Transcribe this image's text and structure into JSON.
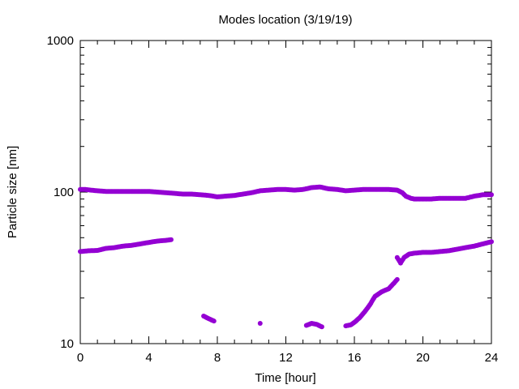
{
  "chart_data": {
    "type": "scatter",
    "title": "Modes location (3/19/19)",
    "xlabel": "Time [hour]",
    "ylabel": "Particle size [nm]",
    "xlim": [
      0,
      24
    ],
    "ylim": [
      10,
      1000
    ],
    "y_scale": "log",
    "x_ticks": [
      0,
      4,
      8,
      12,
      16,
      20,
      24
    ],
    "x_tick_labels": [
      "0",
      "4",
      "8",
      "12",
      "16",
      "20",
      "24"
    ],
    "y_ticks": [
      10,
      100,
      1000
    ],
    "y_tick_labels": [
      "10",
      "100",
      "1000"
    ],
    "grid": false,
    "legend": "none",
    "marker_color": "#9400d3",
    "series": [
      {
        "points": [
          [
            0.0,
            104
          ],
          [
            0.3,
            104
          ],
          [
            0.6,
            103
          ],
          [
            1.0,
            102
          ],
          [
            1.5,
            101
          ],
          [
            2.0,
            101
          ],
          [
            2.5,
            101
          ],
          [
            3.0,
            101
          ],
          [
            3.5,
            101
          ],
          [
            4.0,
            101
          ],
          [
            4.5,
            100
          ],
          [
            5.0,
            99
          ],
          [
            5.5,
            98
          ],
          [
            6.0,
            97
          ],
          [
            6.5,
            97
          ],
          [
            7.0,
            96
          ],
          [
            7.5,
            95
          ],
          [
            8.0,
            93
          ],
          [
            8.5,
            94
          ],
          [
            9.0,
            95
          ],
          [
            9.5,
            97
          ],
          [
            10.0,
            99
          ],
          [
            10.5,
            102
          ],
          [
            11.0,
            103
          ],
          [
            11.5,
            104
          ],
          [
            12.0,
            104
          ],
          [
            12.5,
            103
          ],
          [
            13.0,
            104
          ],
          [
            13.5,
            107
          ],
          [
            14.0,
            108
          ],
          [
            14.5,
            105
          ],
          [
            15.0,
            104
          ],
          [
            15.5,
            102
          ],
          [
            16.0,
            103
          ],
          [
            16.5,
            104
          ],
          [
            17.0,
            104
          ],
          [
            17.5,
            104
          ],
          [
            18.0,
            104
          ],
          [
            18.5,
            103
          ],
          [
            18.8,
            99
          ],
          [
            19.0,
            94
          ],
          [
            19.3,
            91
          ],
          [
            19.5,
            90
          ],
          [
            20.0,
            90
          ],
          [
            20.5,
            90
          ],
          [
            21.0,
            91
          ],
          [
            21.5,
            91
          ],
          [
            22.0,
            91
          ],
          [
            22.5,
            91
          ],
          [
            23.0,
            94
          ],
          [
            23.5,
            96
          ],
          [
            24.0,
            96
          ]
        ]
      },
      {
        "points": [
          [
            0.0,
            40.5
          ],
          [
            0.5,
            41
          ],
          [
            1.0,
            41.2
          ],
          [
            1.5,
            42.5
          ],
          [
            2.0,
            43
          ],
          [
            2.5,
            44
          ],
          [
            3.0,
            44.5
          ],
          [
            3.5,
            45.5
          ],
          [
            4.0,
            46.5
          ],
          [
            4.5,
            47.5
          ],
          [
            5.0,
            48
          ],
          [
            5.3,
            48.5
          ]
        ]
      },
      {
        "points": [
          [
            7.2,
            15.2
          ],
          [
            7.5,
            14.6
          ],
          [
            7.8,
            14.1
          ],
          [
            10.5,
            13.6
          ],
          [
            13.2,
            13.2
          ],
          [
            13.5,
            13.6
          ],
          [
            13.8,
            13.4
          ],
          [
            14.1,
            12.9
          ],
          [
            15.5,
            13.1
          ],
          [
            15.8,
            13.3
          ],
          [
            16.0,
            13.8
          ],
          [
            16.3,
            14.8
          ],
          [
            16.6,
            16.2
          ],
          [
            16.9,
            18
          ],
          [
            17.2,
            20.5
          ],
          [
            17.6,
            22
          ],
          [
            18.0,
            23
          ],
          [
            18.3,
            25
          ],
          [
            18.5,
            26.5
          ],
          [
            18.5,
            37
          ],
          [
            18.7,
            34
          ],
          [
            18.9,
            37
          ],
          [
            19.2,
            39
          ],
          [
            19.5,
            39.5
          ],
          [
            20.0,
            40
          ],
          [
            20.5,
            40
          ],
          [
            21.0,
            40.5
          ],
          [
            21.5,
            41
          ],
          [
            22.0,
            42
          ],
          [
            22.5,
            43
          ],
          [
            23.0,
            44
          ],
          [
            23.5,
            45.5
          ],
          [
            24.0,
            47
          ]
        ]
      }
    ]
  }
}
